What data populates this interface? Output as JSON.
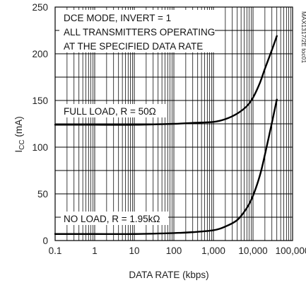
{
  "figure_code": "MAX1317/2E toc01",
  "chart_data": {
    "type": "line",
    "xlabel": "DATA RATE (kbps)",
    "ylabel_main": "I",
    "ylabel_sub": "CC",
    "ylabel_tail": " (mA)",
    "x_scale": "log",
    "xlim": [
      0.1,
      100000
    ],
    "ylim": [
      0,
      250
    ],
    "grid": true,
    "x_tick_values": [
      0.1,
      1,
      10,
      100,
      1000,
      10000,
      100000
    ],
    "x_tick_labels": [
      "0.1",
      "1",
      "10",
      "100",
      "1,000",
      "10,000",
      "100,000"
    ],
    "y_tick_values": [
      0,
      50,
      100,
      150,
      200,
      250
    ],
    "y_tick_labels": [
      "0",
      "50",
      "100",
      "150",
      "200",
      "250"
    ],
    "annotations": {
      "conditions": [
        "DCE MODE, INVERT = 1",
        "ALL TRANSMITTERS OPERATING",
        "AT THE SPECIFIED DATA RATE"
      ],
      "full_load": "FULL LOAD, R = 50Ω",
      "no_load": "NO LOAD, R = 1.95kΩ"
    },
    "series": [
      {
        "x": [
          0.1,
          1,
          10,
          100,
          300,
          1000,
          2000,
          4000,
          7000,
          10000,
          15000,
          20000,
          30000,
          40000
        ],
        "y": [
          124,
          124,
          124,
          125,
          126,
          127,
          130,
          136,
          144,
          153,
          169,
          184,
          204,
          219
        ]
      },
      {
        "x": [
          0.1,
          1,
          10,
          100,
          300,
          1000,
          2000,
          4000,
          7000,
          10000,
          15000,
          20000,
          30000,
          40000
        ],
        "y": [
          7,
          7,
          7,
          8,
          9,
          11,
          15,
          22,
          35,
          48,
          70,
          92,
          126,
          151
        ]
      }
    ],
    "colors": {
      "curve": "#000000",
      "grid": "#000000",
      "text": "#222222"
    }
  }
}
